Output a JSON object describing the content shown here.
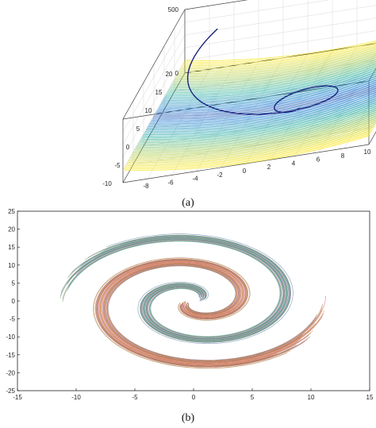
{
  "chart_data": [
    {
      "type": "surface3d",
      "panel": "(a)",
      "caption": "(a)",
      "surface": "paraboloid-like bowl, colormap parula (blue at bottom to yellow at rim)",
      "curve": "dark blue spiral trajectory descending toward the bowl minimum",
      "x_ticks": [
        "-8",
        "-6",
        "-4",
        "-2",
        "0",
        "2",
        "4",
        "6",
        "8",
        "10"
      ],
      "y_ticks": [
        "-10",
        "-5",
        "0",
        "5",
        "10",
        "15",
        "20"
      ],
      "z_ticks": [
        "0",
        "500"
      ],
      "xlim": [
        -10,
        10
      ],
      "ylim": [
        -10,
        20
      ],
      "zlim": [
        0,
        500
      ],
      "grid": true,
      "colors": {
        "curve": "#1a237e",
        "surface_low": "#3b1f9e",
        "surface_mid": "#2aa6a0",
        "surface_high": "#f4e23a"
      }
    },
    {
      "type": "line",
      "panel": "(b)",
      "caption": "(b)",
      "description": "many overlapping multicolored two-armed spiral curves",
      "x_ticks": [
        "-15",
        "-10",
        "-5",
        "0",
        "5",
        "10",
        "15"
      ],
      "y_ticks": [
        "25",
        "20",
        "15",
        "10",
        "5",
        "0",
        "-5",
        "-10",
        "-15",
        "-20",
        "-25"
      ],
      "xlim": [
        -15,
        15
      ],
      "ylim": [
        -25,
        25
      ],
      "arms": 2,
      "grid": false,
      "colors": [
        "#4e79a7",
        "#e15759",
        "#59a14f",
        "#9c755f",
        "#b07aa1",
        "#f28e2b",
        "#76b7b2",
        "#7f7f7f"
      ]
    }
  ],
  "captions": {
    "a": "(a)",
    "b": "(b)"
  }
}
